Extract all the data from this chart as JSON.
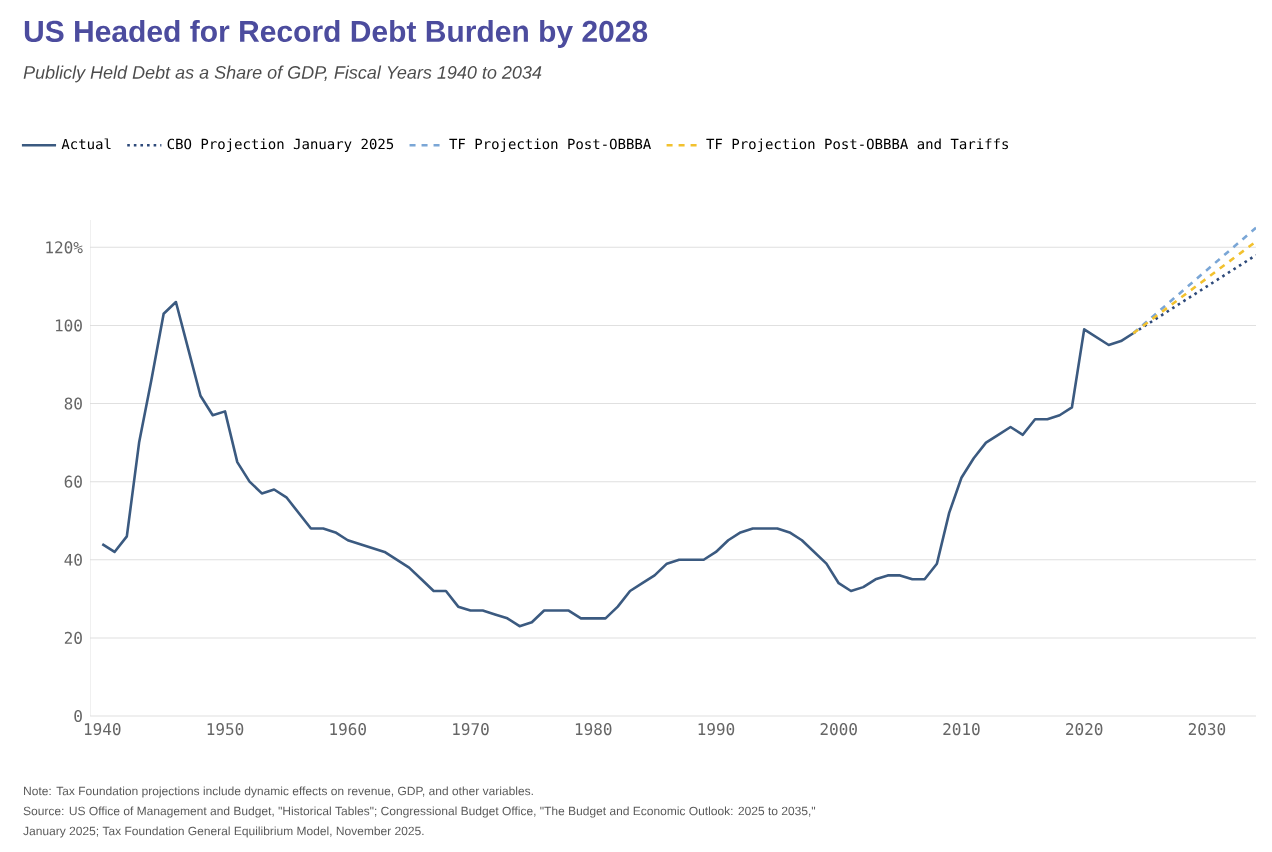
{
  "chart_data": {
    "type": "line",
    "title": "US Headed for Record Debt Burden by 2028",
    "subtitle": "Publicly Held Debt as a Share of GDP, Fiscal Years 1940 to 2034",
    "series": [
      {
        "name": "Actual",
        "color": "#3b5a80",
        "line_style": "solid",
        "x": [
          1940,
          1941,
          1942,
          1943,
          1944,
          1945,
          1946,
          1947,
          1948,
          1949,
          1950,
          1951,
          1952,
          1953,
          1954,
          1955,
          1956,
          1957,
          1958,
          1959,
          1960,
          1961,
          1962,
          1963,
          1964,
          1965,
          1966,
          1967,
          1968,
          1969,
          1970,
          1971,
          1972,
          1973,
          1974,
          1975,
          1976,
          1977,
          1978,
          1979,
          1980,
          1981,
          1982,
          1983,
          1984,
          1985,
          1986,
          1987,
          1988,
          1989,
          1990,
          1991,
          1992,
          1993,
          1994,
          1995,
          1996,
          1997,
          1998,
          1999,
          2000,
          2001,
          2002,
          2003,
          2004,
          2005,
          2006,
          2007,
          2008,
          2009,
          2010,
          2011,
          2012,
          2013,
          2014,
          2015,
          2016,
          2017,
          2018,
          2019,
          2020,
          2021,
          2022,
          2023,
          2024
        ],
        "values": [
          44,
          42,
          46,
          70,
          86,
          103,
          106,
          94,
          82,
          77,
          78,
          65,
          60,
          57,
          58,
          56,
          52,
          48,
          48,
          47,
          45,
          44,
          43,
          42,
          40,
          38,
          35,
          32,
          32,
          28,
          27,
          27,
          26,
          25,
          23,
          24,
          27,
          27,
          27,
          25,
          25,
          25,
          28,
          32,
          34,
          36,
          39,
          40,
          40,
          40,
          42,
          45,
          47,
          48,
          48,
          48,
          47,
          45,
          42,
          39,
          34,
          32,
          33,
          35,
          36,
          36,
          35,
          35,
          39,
          52,
          61,
          66,
          70,
          72,
          74,
          72,
          76,
          76,
          77,
          79,
          99,
          97,
          95,
          96,
          98
        ]
      },
      {
        "name": "CBO Projection January 2025",
        "color": "#2e4a7a",
        "line_style": "dotted",
        "x": [
          2024,
          2034
        ],
        "values": [
          98,
          118
        ]
      },
      {
        "name": "TF Projection Post-OBBBA",
        "color": "#7aa6d6",
        "line_style": "dashed",
        "x": [
          2024,
          2034
        ],
        "values": [
          98,
          125
        ]
      },
      {
        "name": "TF Projection Post-OBBBA and Tariffs",
        "color": "#f2c12e",
        "line_style": "dashed",
        "x": [
          2024,
          2034
        ],
        "values": [
          98,
          121.5
        ]
      }
    ],
    "xlim": [
      1939,
      2034
    ],
    "ylim": [
      0,
      127
    ],
    "xticks": [
      1940,
      1950,
      1960,
      1970,
      1980,
      1990,
      2000,
      2010,
      2020,
      2030
    ],
    "yticks": [
      0,
      20,
      40,
      60,
      80,
      100,
      {
        "value": 120,
        "label": "120%"
      }
    ],
    "grid": "y",
    "legend": "top",
    "annotations": [
      "Note: Tax Foundation projections include dynamic effects on revenue, GDP, and other variables.",
      "Source: US Office of Management and Budget, \"Historical Tables\"; Congressional Budget Office, \"The Budget and Economic Outlook: 2025 to 2035,\"",
      "January 2025; Tax Foundation General Equilibrium Model, November 2025."
    ]
  }
}
